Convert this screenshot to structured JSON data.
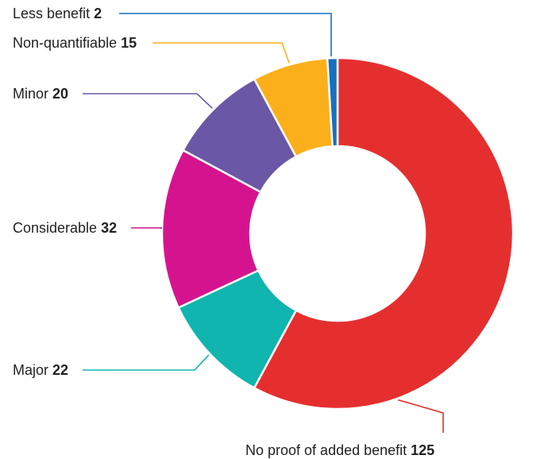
{
  "chart_data": {
    "type": "pie",
    "subtype": "donut",
    "title": "",
    "slices": [
      {
        "label": "No proof of added benefit",
        "value": 125,
        "color": "#e52f2f"
      },
      {
        "label": "Major",
        "value": 22,
        "color": "#0fb5ae"
      },
      {
        "label": "Considerable",
        "value": 32,
        "color": "#d6138e"
      },
      {
        "label": "Minor",
        "value": 20,
        "color": "#6a57a6"
      },
      {
        "label": "Non-quantifiable",
        "value": 15,
        "color": "#fbb01b"
      },
      {
        "label": "Less benefit",
        "value": 2,
        "color": "#1570c0"
      }
    ],
    "legend": "callout labels"
  }
}
